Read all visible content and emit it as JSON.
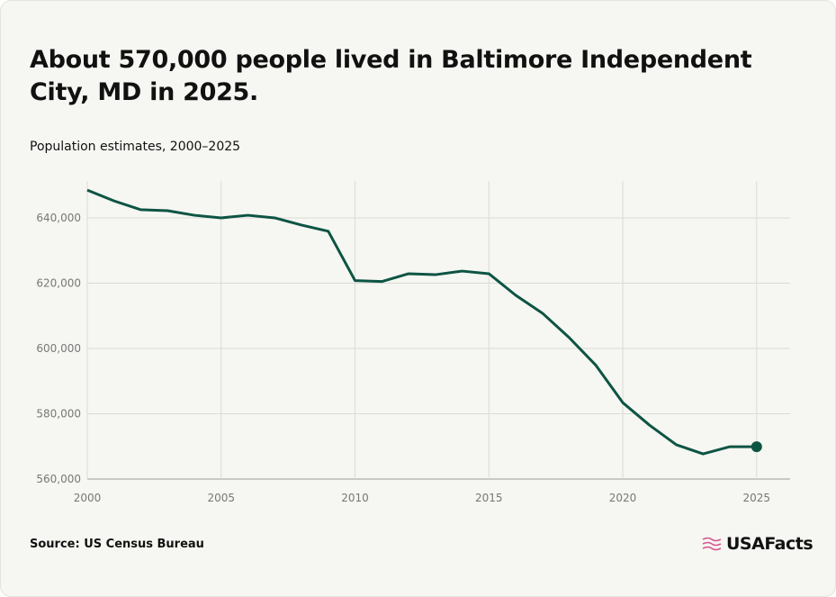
{
  "chart_data": {
    "type": "line",
    "title": "About 570,000 people lived in Baltimore Independent City, MD in 2025.",
    "subtitle": "Population estimates, 2000–2025",
    "source": "Source: US Census Bureau",
    "logo": "USAFacts",
    "x": [
      2000,
      2001,
      2002,
      2003,
      2004,
      2005,
      2006,
      2007,
      2008,
      2009,
      2010,
      2011,
      2012,
      2013,
      2014,
      2015,
      2016,
      2017,
      2018,
      2019,
      2020,
      2021,
      2022,
      2023,
      2024,
      2025
    ],
    "series": [
      {
        "name": "Population",
        "color": "#0d5443",
        "values": [
          648500,
          645200,
          642500,
          642200,
          640800,
          640000,
          640800,
          640000,
          637800,
          635900,
          620800,
          620500,
          622900,
          622600,
          623700,
          622900,
          616300,
          610800,
          603300,
          594800,
          583400,
          576500,
          570500,
          567700,
          569900,
          569900
        ]
      }
    ],
    "xlim": [
      2000,
      2026.25
    ],
    "ylim": [
      560000,
      651300
    ],
    "xticks": [
      2000,
      2005,
      2010,
      2015,
      2020,
      2025
    ],
    "yticks": [
      {
        "value": 560000,
        "label": "560,000"
      },
      {
        "value": 580000,
        "label": "580,000"
      },
      {
        "value": 600000,
        "label": "600,000"
      },
      {
        "value": 620000,
        "label": "620,000"
      },
      {
        "value": 640000,
        "label": "640,000"
      }
    ],
    "grid": true
  }
}
